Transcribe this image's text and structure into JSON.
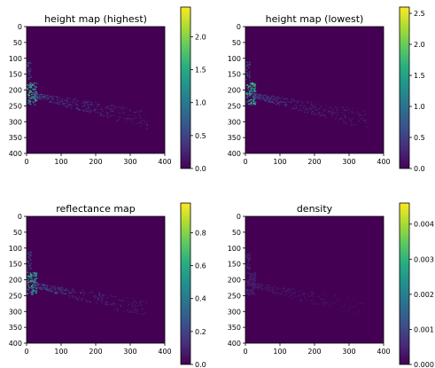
{
  "chart_data": [
    {
      "type": "heatmap",
      "title": "height map (highest)",
      "xlim": [
        0,
        400
      ],
      "ylim": [
        400,
        0
      ],
      "xticks": [
        "0",
        "100",
        "200",
        "300",
        "400"
      ],
      "yticks": [
        "0",
        "50",
        "100",
        "150",
        "200",
        "250",
        "300",
        "350",
        "400"
      ],
      "colorbar": {
        "min": 0.0,
        "max": 2.45,
        "ticks": [
          "0.0",
          "0.5",
          "1.0",
          "1.5",
          "2.0"
        ]
      },
      "colormap": "viridis",
      "background_value": 0.0
    },
    {
      "type": "heatmap",
      "title": "height map (lowest)",
      "xlim": [
        0,
        400
      ],
      "ylim": [
        400,
        0
      ],
      "xticks": [
        "0",
        "100",
        "200",
        "300",
        "400"
      ],
      "yticks": [
        "0",
        "50",
        "100",
        "150",
        "200",
        "250",
        "300",
        "350",
        "400"
      ],
      "colorbar": {
        "min": 0.0,
        "max": 2.6,
        "ticks": [
          "0.0",
          "0.5",
          "1.0",
          "1.5",
          "2.0",
          "2.5"
        ]
      },
      "colormap": "viridis",
      "background_value": 0.0
    },
    {
      "type": "heatmap",
      "title": "reflectance map",
      "xlim": [
        0,
        400
      ],
      "ylim": [
        400,
        0
      ],
      "xticks": [
        "0",
        "100",
        "200",
        "300",
        "400"
      ],
      "yticks": [
        "0",
        "50",
        "100",
        "150",
        "200",
        "250",
        "300",
        "350",
        "400"
      ],
      "colorbar": {
        "min": 0.0,
        "max": 0.98,
        "ticks": [
          "0.0",
          "0.2",
          "0.4",
          "0.6",
          "0.8"
        ]
      },
      "colormap": "viridis",
      "background_value": 0.0
    },
    {
      "type": "heatmap",
      "title": "density",
      "xlim": [
        0,
        400
      ],
      "ylim": [
        400,
        0
      ],
      "xticks": [
        "0",
        "100",
        "200",
        "300",
        "400"
      ],
      "yticks": [
        "0",
        "50",
        "100",
        "150",
        "200",
        "250",
        "300",
        "350",
        "400"
      ],
      "colorbar": {
        "min": 0.0,
        "max": 0.0046,
        "ticks": [
          "0.000",
          "0.001",
          "0.002",
          "0.003",
          "0.004"
        ]
      },
      "colormap": "viridis",
      "background_value": 0.0
    }
  ],
  "colors": {
    "viridis_low": "#440154",
    "viridis_mid": "#21918c",
    "viridis_high": "#fde725"
  }
}
